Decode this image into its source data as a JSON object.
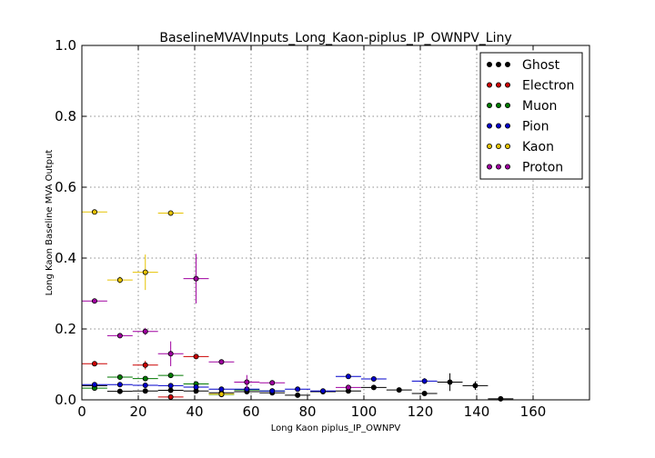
{
  "chart_data": {
    "type": "scatter",
    "title": "BaselineMVAVInputs_Long_Kaon-piplus_IP_OWNPV_Liny",
    "xlabel": "Long Kaon piplus_IP_OWNPV",
    "ylabel": "Long Kaon Baseline MVA Output",
    "xlim": [
      0,
      180
    ],
    "ylim": [
      0,
      1.0
    ],
    "x_ticks": [
      "0",
      "20",
      "40",
      "60",
      "80",
      "100",
      "120",
      "140",
      "160"
    ],
    "y_ticks": [
      "0.0",
      "0.2",
      "0.4",
      "0.6",
      "0.8",
      "1.0"
    ],
    "grid": true,
    "legend_position": "top-right",
    "x_error": 4.5,
    "series": [
      {
        "name": "Ghost",
        "color": "#000000",
        "points": [
          {
            "x": 4.5,
            "y": 0.04,
            "ey": 0.003
          },
          {
            "x": 13.5,
            "y": 0.024,
            "ey": 0.003
          },
          {
            "x": 22.5,
            "y": 0.025,
            "ey": 0.003
          },
          {
            "x": 31.5,
            "y": 0.027,
            "ey": 0.003
          },
          {
            "x": 40.5,
            "y": 0.025,
            "ey": 0.003
          },
          {
            "x": 49.5,
            "y": 0.02,
            "ey": 0.003
          },
          {
            "x": 58.5,
            "y": 0.023,
            "ey": 0.003
          },
          {
            "x": 67.5,
            "y": 0.02,
            "ey": 0.003
          },
          {
            "x": 76.5,
            "y": 0.013,
            "ey": 0.003
          },
          {
            "x": 85.5,
            "y": 0.023,
            "ey": 0.004
          },
          {
            "x": 94.5,
            "y": 0.025,
            "ey": 0.004
          },
          {
            "x": 103.5,
            "y": 0.035,
            "ey": 0.006
          },
          {
            "x": 112.5,
            "y": 0.028,
            "ey": 0.005
          },
          {
            "x": 121.5,
            "y": 0.018,
            "ey": 0.006
          },
          {
            "x": 130.5,
            "y": 0.05,
            "ey": 0.025
          },
          {
            "x": 139.5,
            "y": 0.04,
            "ey": 0.012
          },
          {
            "x": 148.5,
            "y": 0.003,
            "ey": 0.002
          }
        ]
      },
      {
        "name": "Electron",
        "color": "#cc0000",
        "points": [
          {
            "x": 4.5,
            "y": 0.102,
            "ey": 0.003
          },
          {
            "x": 22.5,
            "y": 0.098,
            "ey": 0.012
          },
          {
            "x": 31.5,
            "y": 0.008,
            "ey": 0.003
          },
          {
            "x": 40.5,
            "y": 0.122,
            "ey": 0.004
          }
        ]
      },
      {
        "name": "Muon",
        "color": "#007a00",
        "points": [
          {
            "x": 4.5,
            "y": 0.033,
            "ey": 0.003
          },
          {
            "x": 13.5,
            "y": 0.064,
            "ey": 0.004
          },
          {
            "x": 22.5,
            "y": 0.06,
            "ey": 0.004
          },
          {
            "x": 31.5,
            "y": 0.069,
            "ey": 0.005
          },
          {
            "x": 40.5,
            "y": 0.045,
            "ey": 0.004
          },
          {
            "x": 49.5,
            "y": 0.015,
            "ey": 0.003
          },
          {
            "x": 58.5,
            "y": 0.028,
            "ey": 0.004
          },
          {
            "x": 67.5,
            "y": 0.025,
            "ey": 0.004
          }
        ]
      },
      {
        "name": "Pion",
        "color": "#0000cc",
        "points": [
          {
            "x": 4.5,
            "y": 0.043,
            "ey": 0.002
          },
          {
            "x": 13.5,
            "y": 0.043,
            "ey": 0.002
          },
          {
            "x": 22.5,
            "y": 0.041,
            "ey": 0.002
          },
          {
            "x": 31.5,
            "y": 0.04,
            "ey": 0.002
          },
          {
            "x": 40.5,
            "y": 0.036,
            "ey": 0.002
          },
          {
            "x": 49.5,
            "y": 0.03,
            "ey": 0.002
          },
          {
            "x": 58.5,
            "y": 0.03,
            "ey": 0.002
          },
          {
            "x": 67.5,
            "y": 0.025,
            "ey": 0.002
          },
          {
            "x": 76.5,
            "y": 0.03,
            "ey": 0.003
          },
          {
            "x": 85.5,
            "y": 0.025,
            "ey": 0.003
          },
          {
            "x": 94.5,
            "y": 0.066,
            "ey": 0.004
          },
          {
            "x": 103.5,
            "y": 0.059,
            "ey": 0.004
          },
          {
            "x": 121.5,
            "y": 0.053,
            "ey": 0.008
          }
        ]
      },
      {
        "name": "Kaon",
        "color": "#e6c200",
        "points": [
          {
            "x": 4.5,
            "y": 0.53,
            "ey": 0.004
          },
          {
            "x": 13.5,
            "y": 0.338,
            "ey": 0.01
          },
          {
            "x": 22.5,
            "y": 0.36,
            "ey": 0.05
          },
          {
            "x": 31.5,
            "y": 0.527,
            "ey": 0.005
          },
          {
            "x": 49.5,
            "y": 0.016,
            "ey": 0.003
          }
        ]
      },
      {
        "name": "Proton",
        "color": "#a000a0",
        "points": [
          {
            "x": 4.5,
            "y": 0.279,
            "ey": 0.004
          },
          {
            "x": 13.5,
            "y": 0.181,
            "ey": 0.005
          },
          {
            "x": 22.5,
            "y": 0.193,
            "ey": 0.01
          },
          {
            "x": 31.5,
            "y": 0.13,
            "ey": 0.035
          },
          {
            "x": 40.5,
            "y": 0.342,
            "ey": 0.07
          },
          {
            "x": 49.5,
            "y": 0.107,
            "ey": 0.005
          },
          {
            "x": 58.5,
            "y": 0.05,
            "ey": 0.02
          },
          {
            "x": 67.5,
            "y": 0.048,
            "ey": 0.005
          },
          {
            "x": 94.5,
            "y": 0.035,
            "ey": 0.004
          }
        ]
      }
    ]
  }
}
